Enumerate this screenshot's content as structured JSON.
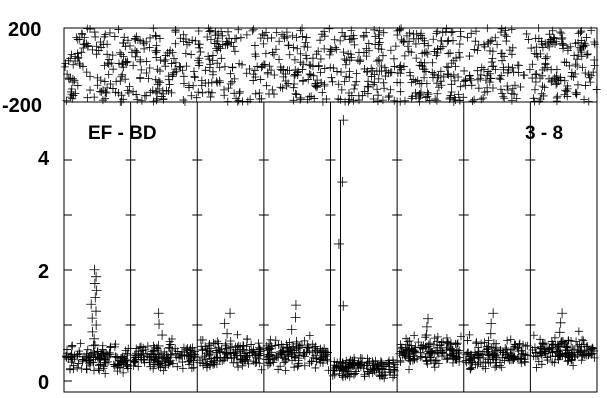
{
  "chart_data": [
    {
      "panel": "phase",
      "type": "scatter",
      "marker": "plus",
      "ylim": [
        -200,
        200
      ],
      "ticks": {
        "y": [
          "200",
          "-200"
        ]
      },
      "grid": true,
      "description_density": "dense random scatter spanning full range",
      "x_divisions": 8,
      "points_per_division_estimate": 120
    },
    {
      "panel": "amplitude",
      "type": "scatter",
      "marker": "plus",
      "ylim": [
        0,
        5
      ],
      "ticks": {
        "y": [
          "4",
          "2",
          "0"
        ]
      },
      "grid": true,
      "annotations": [
        "EF - BD",
        "3 - 8"
      ],
      "x_divisions": 8,
      "segments": [
        {
          "segment": 1,
          "baseline_mean": 0.45,
          "spread": 0.25,
          "spike": 2.1
        },
        {
          "segment": 2,
          "baseline_mean": 0.5,
          "spread": 0.25,
          "spike": 1.3
        },
        {
          "segment": 3,
          "baseline_mean": 0.55,
          "spread": 0.25,
          "spike": 1.3
        },
        {
          "segment": 4,
          "baseline_mean": 0.55,
          "spread": 0.25,
          "spike": 1.45
        },
        {
          "segment": 5,
          "baseline_mean": 0.3,
          "spread": 0.2,
          "spike": 4.85
        },
        {
          "segment": 6,
          "baseline_mean": 0.6,
          "spread": 0.25,
          "spike": 1.2
        },
        {
          "segment": 7,
          "baseline_mean": 0.55,
          "spread": 0.25,
          "spike": 1.3
        },
        {
          "segment": 8,
          "baseline_mean": 0.6,
          "spread": 0.25,
          "spike": 1.3
        }
      ]
    }
  ]
}
